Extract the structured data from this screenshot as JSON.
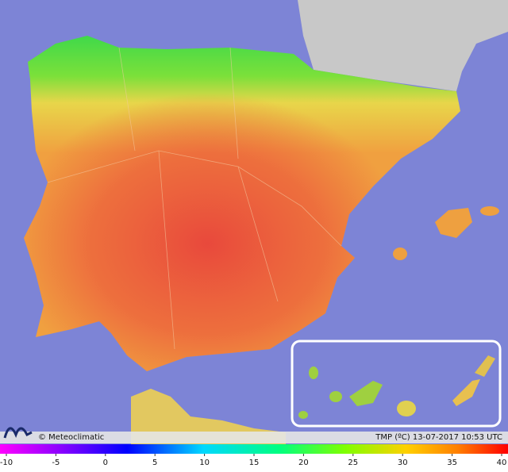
{
  "credit": "© Meteoclimatic",
  "caption": "TMP (ºC) 13-07-2017 10:53 UTC",
  "scale": {
    "range": [
      -10,
      40
    ],
    "ticks": [
      -10,
      -5,
      0,
      5,
      10,
      15,
      20,
      25,
      30,
      35,
      40
    ]
  }
}
